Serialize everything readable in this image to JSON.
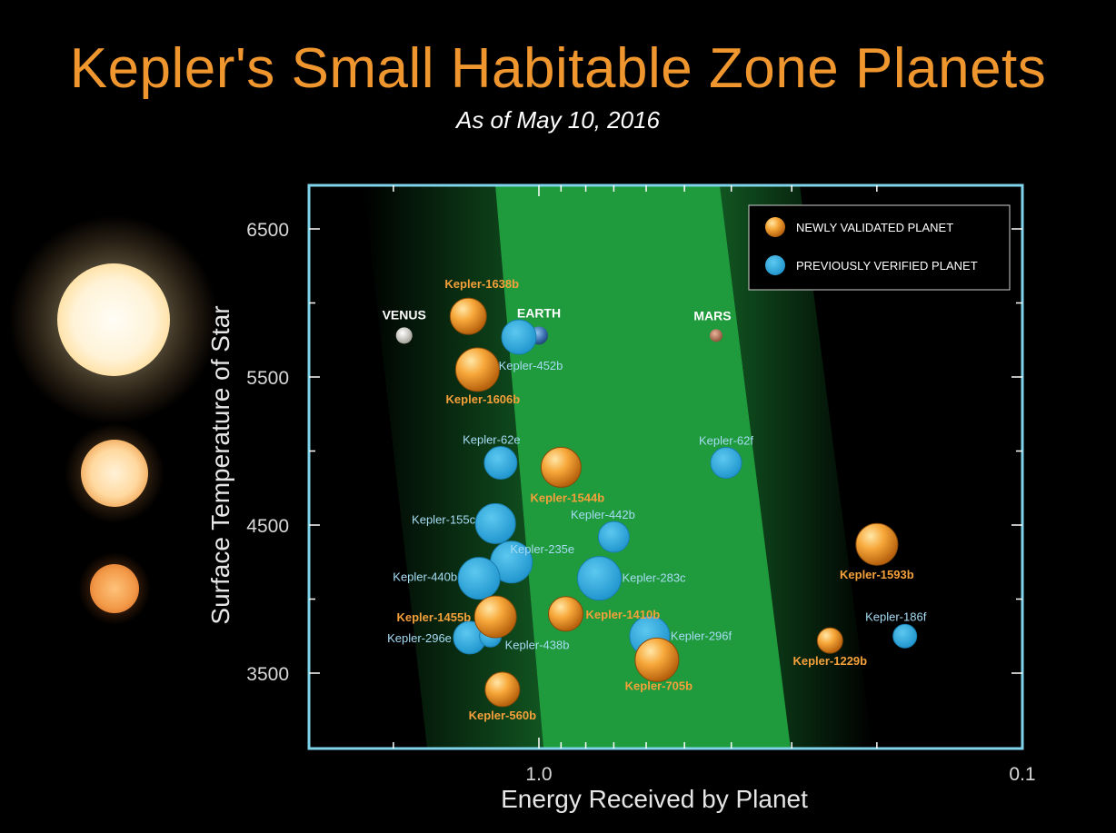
{
  "title": "Kepler's Small Habitable Zone Planets",
  "subtitle": "As of May 10, 2016",
  "colors": {
    "newly_validated": "#f29a2e",
    "previously_verified": "#2aa9e0",
    "habitable_zone": "#1f9a3c",
    "frame": "#7fd3ea",
    "title": "#f0962e"
  },
  "legend": [
    {
      "key": "newly",
      "label": "NEWLY VALIDATED PLANET"
    },
    {
      "key": "previously",
      "label": "PREVIOUSLY VERIFIED PLANET"
    }
  ],
  "chart_data": {
    "type": "scatter",
    "xlabel": "Energy Received by Planet",
    "ylabel": "Surface Temperature of Star",
    "xscale": "log",
    "xreversed": true,
    "xlim": [
      3.8,
      0.1
    ],
    "ylim": [
      3000,
      6800
    ],
    "xticks": [
      {
        "value": 1.0,
        "label": "1.0"
      },
      {
        "value": 0.1,
        "label": "0.1"
      }
    ],
    "yticks": [
      {
        "value": 6500,
        "label": "6500"
      },
      {
        "value": 5500,
        "label": "5500"
      },
      {
        "value": 4500,
        "label": "4500"
      },
      {
        "value": 3500,
        "label": "3500"
      }
    ],
    "legend_position": "top-right",
    "solar_system": [
      {
        "name": "VENUS",
        "x": 1.9,
        "y": 5780,
        "icon": "venus-icon"
      },
      {
        "name": "EARTH",
        "x": 1.0,
        "y": 5780,
        "icon": "earth-icon"
      },
      {
        "name": "MARS",
        "x": 0.43,
        "y": 5780,
        "icon": "mars-icon"
      }
    ],
    "series": [
      {
        "name": "NEWLY VALIDATED PLANET",
        "points": [
          {
            "label": "Kepler-1638b",
            "x": 1.4,
            "y": 5910
          },
          {
            "label": "Kepler-1606b",
            "x": 1.34,
            "y": 5550
          },
          {
            "label": "Kepler-1544b",
            "x": 0.9,
            "y": 4890
          },
          {
            "label": "Kepler-1593b",
            "x": 0.2,
            "y": 4370
          },
          {
            "label": "Kepler-1410b",
            "x": 0.88,
            "y": 3900
          },
          {
            "label": "Kepler-1455b",
            "x": 1.23,
            "y": 3880
          },
          {
            "label": "Kepler-1229b",
            "x": 0.25,
            "y": 3720
          },
          {
            "label": "Kepler-705b",
            "x": 0.57,
            "y": 3590
          },
          {
            "label": "Kepler-560b",
            "x": 1.19,
            "y": 3390
          }
        ]
      },
      {
        "name": "PREVIOUSLY VERIFIED PLANET",
        "points": [
          {
            "label": "Kepler-452b",
            "x": 1.1,
            "y": 5770
          },
          {
            "label": "Kepler-62e",
            "x": 1.2,
            "y": 4920
          },
          {
            "label": "Kepler-62f",
            "x": 0.41,
            "y": 4920
          },
          {
            "label": "Kepler-155c",
            "x": 1.23,
            "y": 4510
          },
          {
            "label": "Kepler-442b",
            "x": 0.7,
            "y": 4420
          },
          {
            "label": "Kepler-235e",
            "x": 1.14,
            "y": 4250
          },
          {
            "label": "Kepler-440b",
            "x": 1.33,
            "y": 4140
          },
          {
            "label": "Kepler-283c",
            "x": 0.75,
            "y": 4140
          },
          {
            "label": "Kepler-186f",
            "x": 0.175,
            "y": 3750
          },
          {
            "label": "Kepler-296f",
            "x": 0.59,
            "y": 3750
          },
          {
            "label": "Kepler-296e",
            "x": 1.39,
            "y": 3740
          },
          {
            "label": "Kepler-438b",
            "x": 1.26,
            "y": 3750
          }
        ]
      }
    ]
  }
}
